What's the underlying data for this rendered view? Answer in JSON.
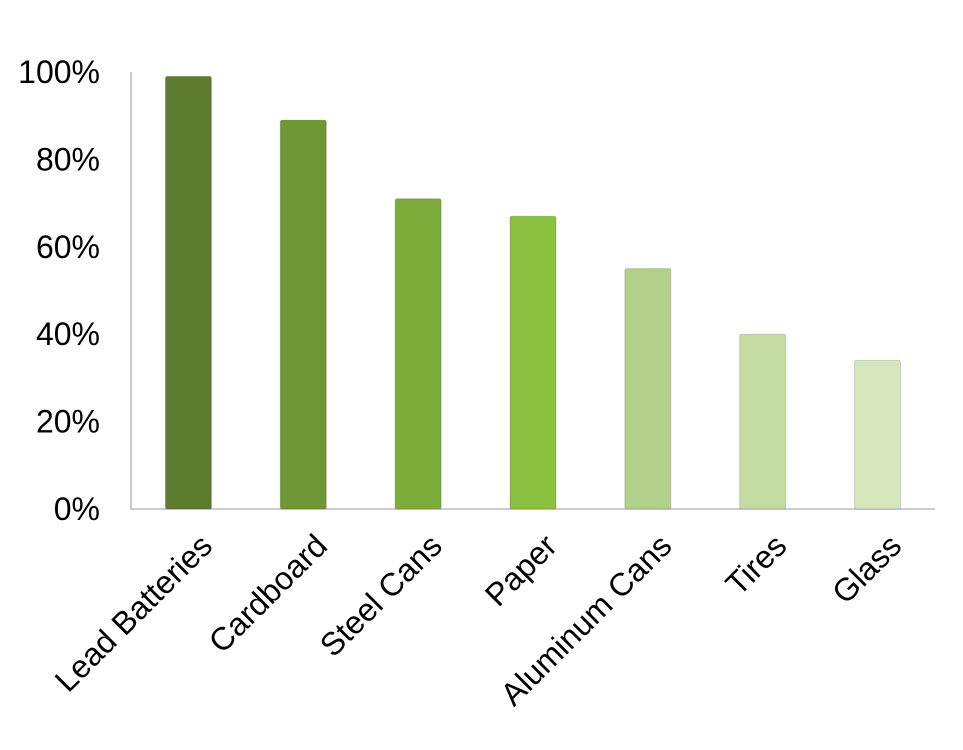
{
  "chart_data": {
    "type": "bar",
    "categories": [
      "Lead Batteries",
      "Cardboard",
      "Steel Cans",
      "Paper",
      "Aluminum Cans",
      "Tires",
      "Glass"
    ],
    "values": [
      99,
      89,
      71,
      67,
      55,
      40,
      34
    ],
    "colors": [
      "#5e7c2f",
      "#6f9735",
      "#7dac3b",
      "#8bc140",
      "#b3d08a",
      "#c4dba3",
      "#d6e6bd"
    ],
    "ylim": [
      0,
      100
    ],
    "yticks": [
      {
        "value": 0,
        "label": "0%"
      },
      {
        "value": 20,
        "label": "20%"
      },
      {
        "value": 40,
        "label": "40%"
      },
      {
        "value": 60,
        "label": "60%"
      },
      {
        "value": 80,
        "label": "80%"
      },
      {
        "value": 100,
        "label": "100%"
      }
    ],
    "grid": false
  }
}
